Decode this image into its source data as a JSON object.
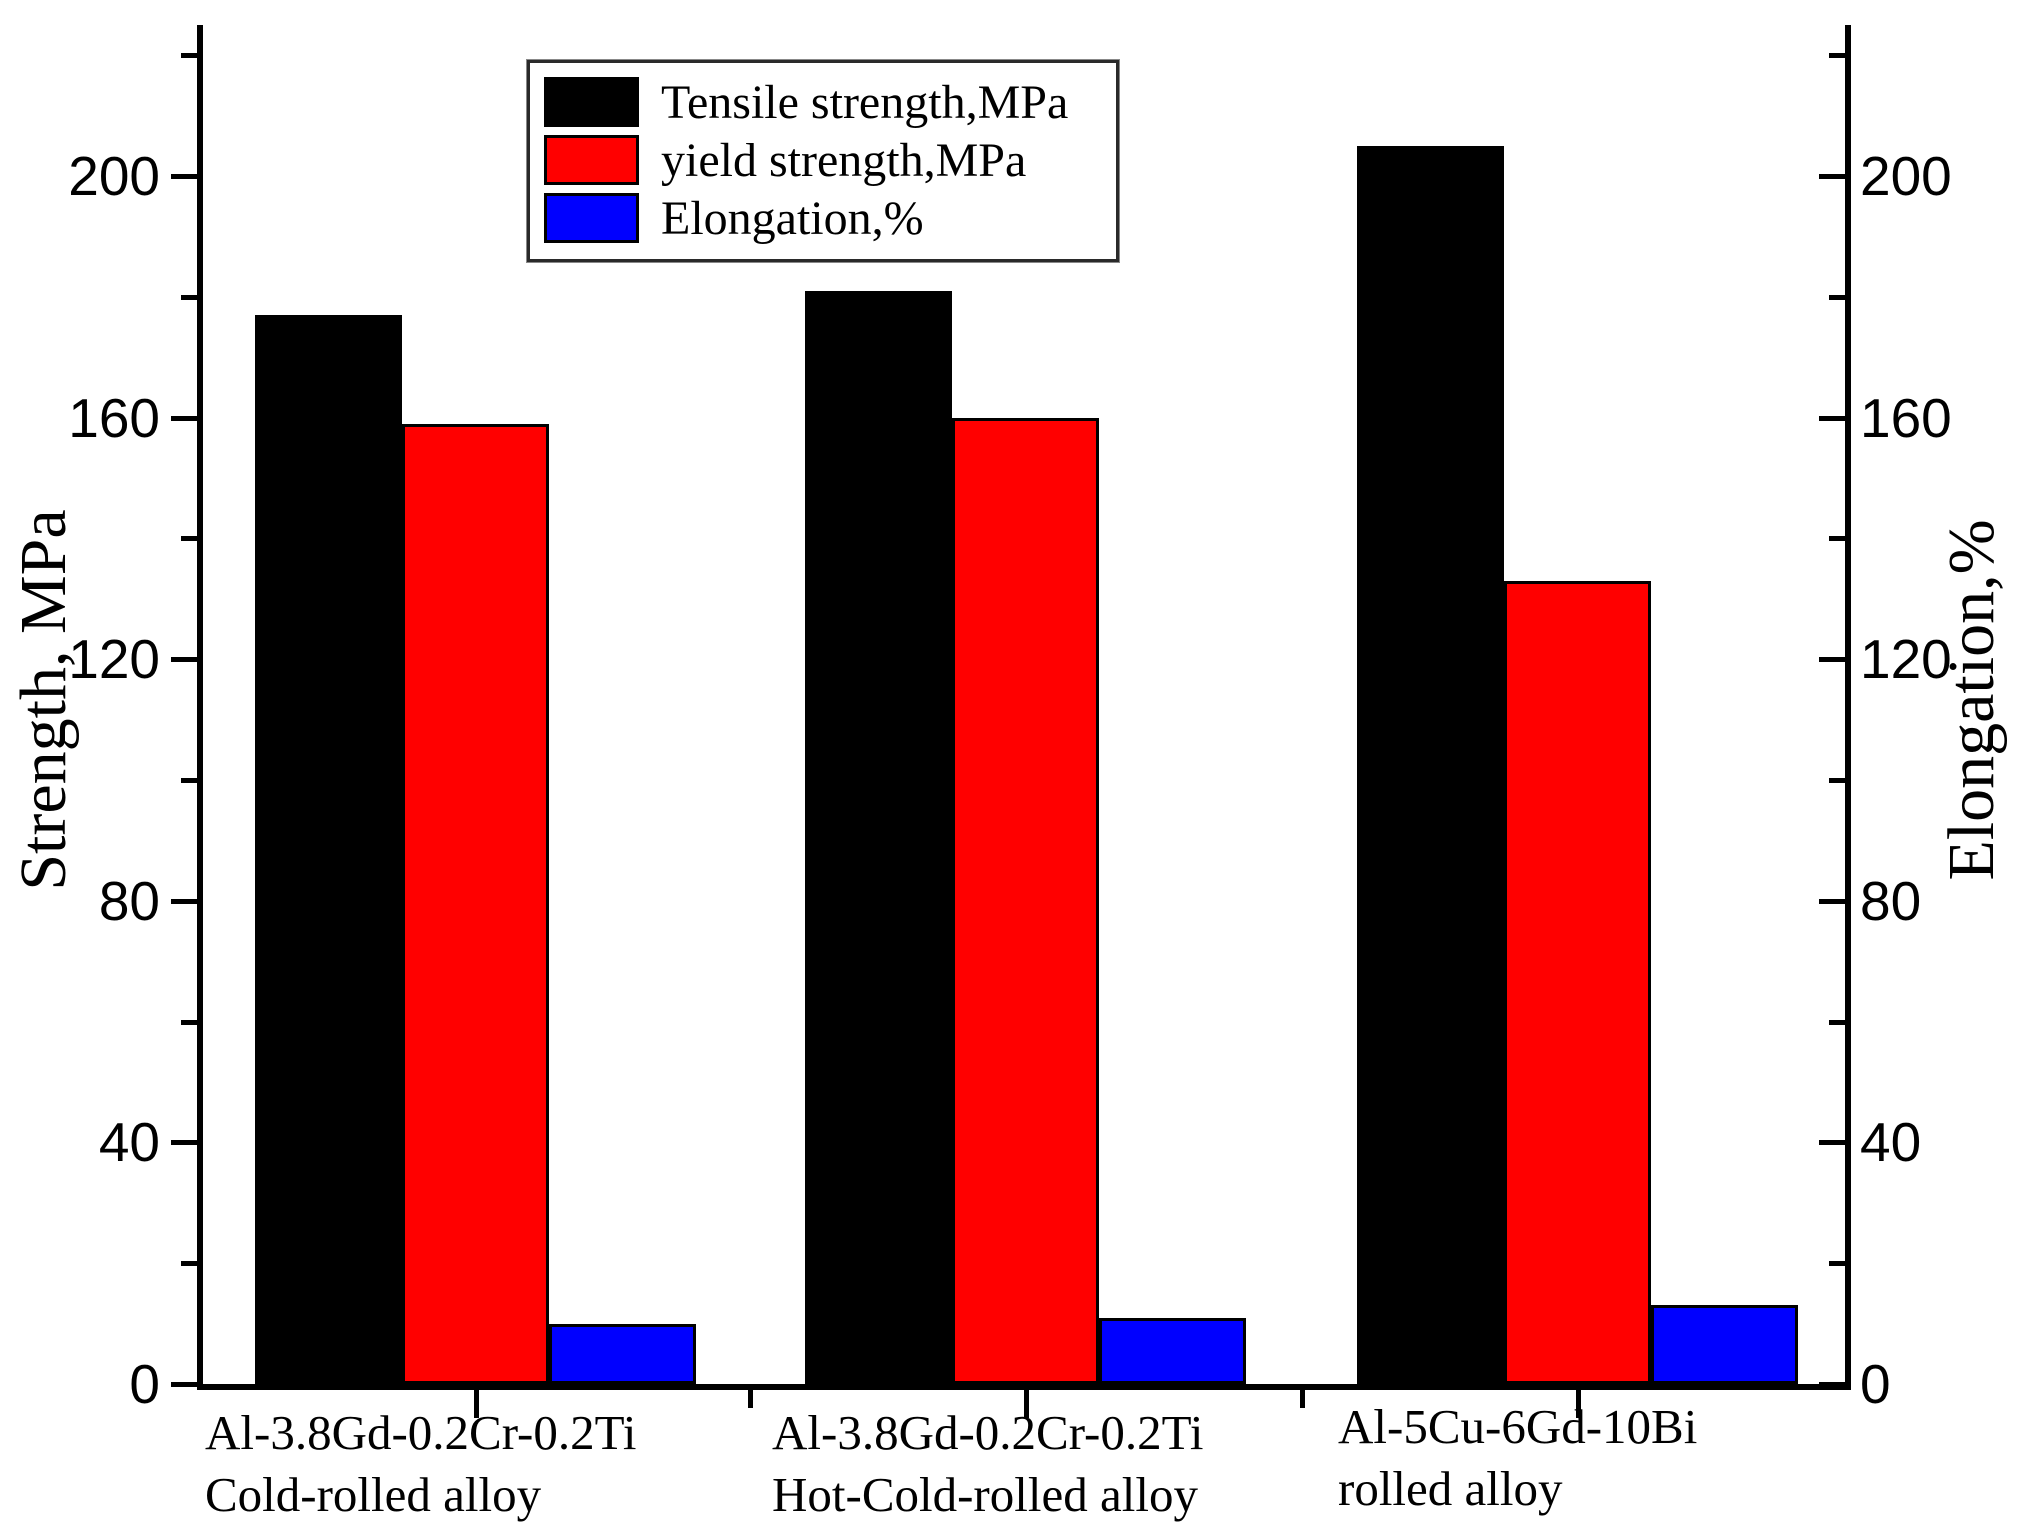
{
  "chart_data": {
    "type": "bar",
    "title": "",
    "categories": [
      {
        "line1": "Al-3.8Gd-0.2Cr-0.2Ti",
        "line2": "Cold-rolled alloy"
      },
      {
        "line1": "Al-3.8Gd-0.2Cr-0.2Ti",
        "line2": "Hot-Cold-rolled alloy"
      },
      {
        "line1": "Al-5Cu-6Gd-10Bi",
        "line2": "rolled alloy"
      }
    ],
    "series": [
      {
        "name": "Tensile strength,MPa",
        "color": "#000000",
        "axis": "left",
        "values": [
          177,
          181,
          205
        ]
      },
      {
        "name": "yield strength,MPa",
        "color": "#ff0000",
        "axis": "left",
        "values": [
          159,
          160,
          133
        ]
      },
      {
        "name": "Elongation,%",
        "color": "#0000ff",
        "axis": "right",
        "values": [
          10,
          11,
          13
        ]
      }
    ],
    "ylabel_left": "Strength, MPa",
    "ylabel_right": "Elongation,%",
    "yticks_major": [
      0,
      40,
      80,
      120,
      160,
      200
    ],
    "yticks_minor": [
      20,
      60,
      100,
      140,
      180,
      220
    ],
    "ylim": [
      0,
      225
    ],
    "grid": false,
    "legend_position": "top-center",
    "axis_color": "#000000",
    "background": "#ffffff"
  }
}
